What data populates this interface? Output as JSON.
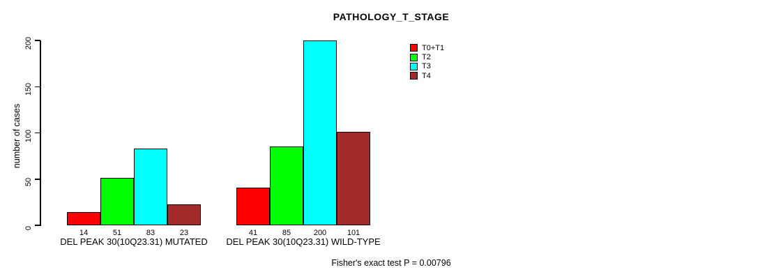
{
  "title": "PATHOLOGY_T_STAGE",
  "ylabel": "number of cases",
  "footer": "Fisher's exact test P = 0.00796",
  "chart_data": {
    "type": "bar",
    "grouped": true,
    "title": "PATHOLOGY_T_STAGE",
    "xlabel": "",
    "ylabel": "number of cases",
    "categories": [
      "DEL PEAK 30(10Q23.31) MUTATED",
      "DEL PEAK 30(10Q23.31) WILD-TYPE"
    ],
    "series": [
      {
        "name": "T0+T1",
        "color": "#FF0000",
        "values": [
          14,
          41
        ]
      },
      {
        "name": "T2",
        "color": "#00FF00",
        "values": [
          51,
          85
        ]
      },
      {
        "name": "T3",
        "color": "#00FFFF",
        "values": [
          83,
          200
        ]
      },
      {
        "name": "T4",
        "color": "#A52A2A",
        "values": [
          23,
          101
        ]
      }
    ],
    "bar_value_labels": [
      [
        "14",
        "51",
        "83",
        "23"
      ],
      [
        "41",
        "85",
        "200",
        "101"
      ]
    ],
    "yticks": [
      0,
      50,
      100,
      150,
      200
    ],
    "ylim": [
      0,
      200
    ],
    "grid": false,
    "legend_position": "top-right",
    "annotation": "Fisher's exact test P = 0.00796",
    "bar_border_color": "#000000",
    "background_color": "#FFFFFF"
  }
}
